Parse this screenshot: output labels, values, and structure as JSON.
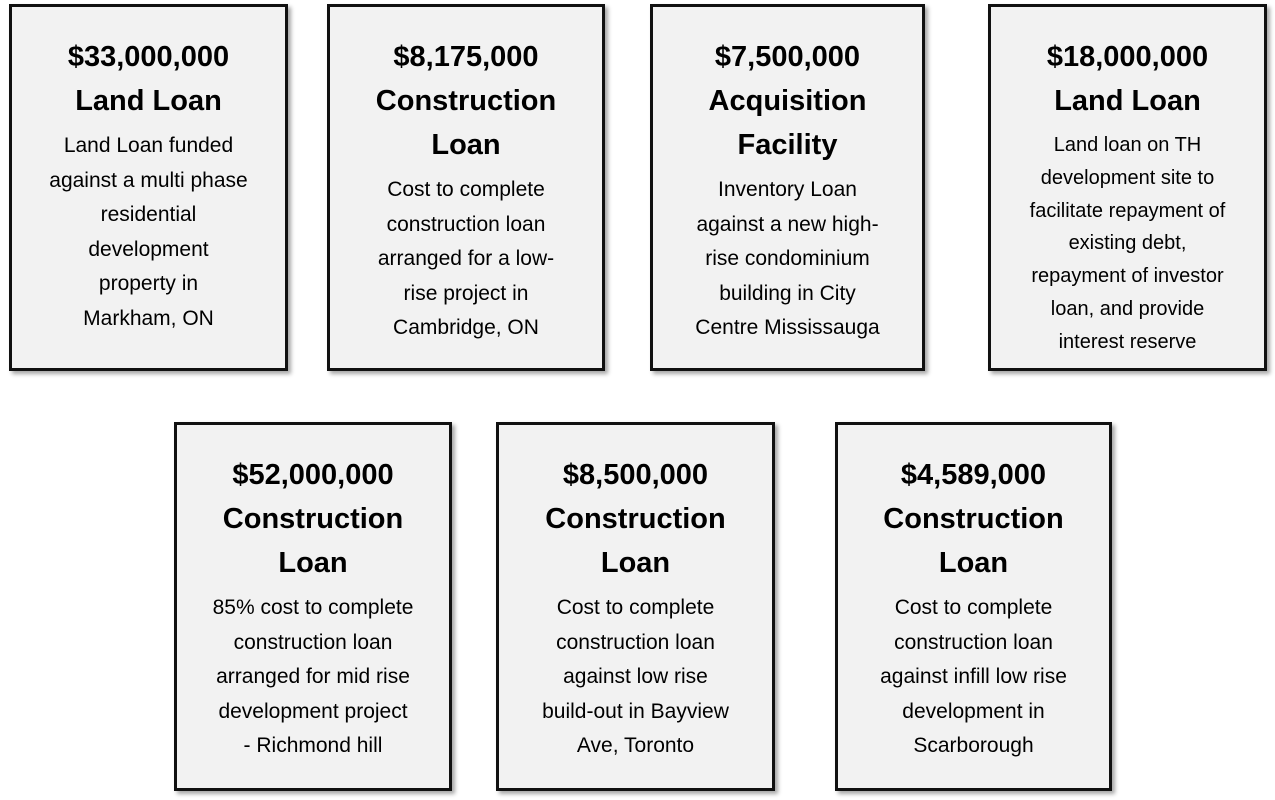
{
  "cards": [
    {
      "amount": "$33,000,000",
      "type": "Land Loan",
      "description": "Land Loan funded\nagainst a multi phase\nresidential\ndevelopment\nproperty in\nMarkham, ON"
    },
    {
      "amount": "$8,175,000",
      "type": "Construction\nLoan",
      "description": "Cost to complete\nconstruction loan\narranged for a low-\nrise project in\nCambridge, ON"
    },
    {
      "amount": "$7,500,000",
      "type": "Acquisition\nFacility",
      "description": "Inventory Loan\nagainst a new high-\nrise condominium\nbuilding in City\nCentre Mississauga"
    },
    {
      "amount": "$18,000,000",
      "type": "Land Loan",
      "description": "Land loan on TH\ndevelopment site to\nfacilitate repayment of\nexisting debt,\nrepayment of investor\nloan, and provide\ninterest  reserve"
    },
    {
      "amount": "$52,000,000",
      "type": "Construction\nLoan",
      "description": "85% cost to complete\nconstruction loan\narranged for mid rise\ndevelopment project\n- Richmond hill"
    },
    {
      "amount": "$8,500,000",
      "type": "Construction\nLoan",
      "description": "Cost to complete\nconstruction loan\nagainst low rise\nbuild-out in Bayview\nAve, Toronto"
    },
    {
      "amount": "$4,589,000",
      "type": "Construction\nLoan",
      "description": "Cost to complete\nconstruction loan\nagainst infill low rise\ndevelopment in\nScarborough"
    }
  ]
}
